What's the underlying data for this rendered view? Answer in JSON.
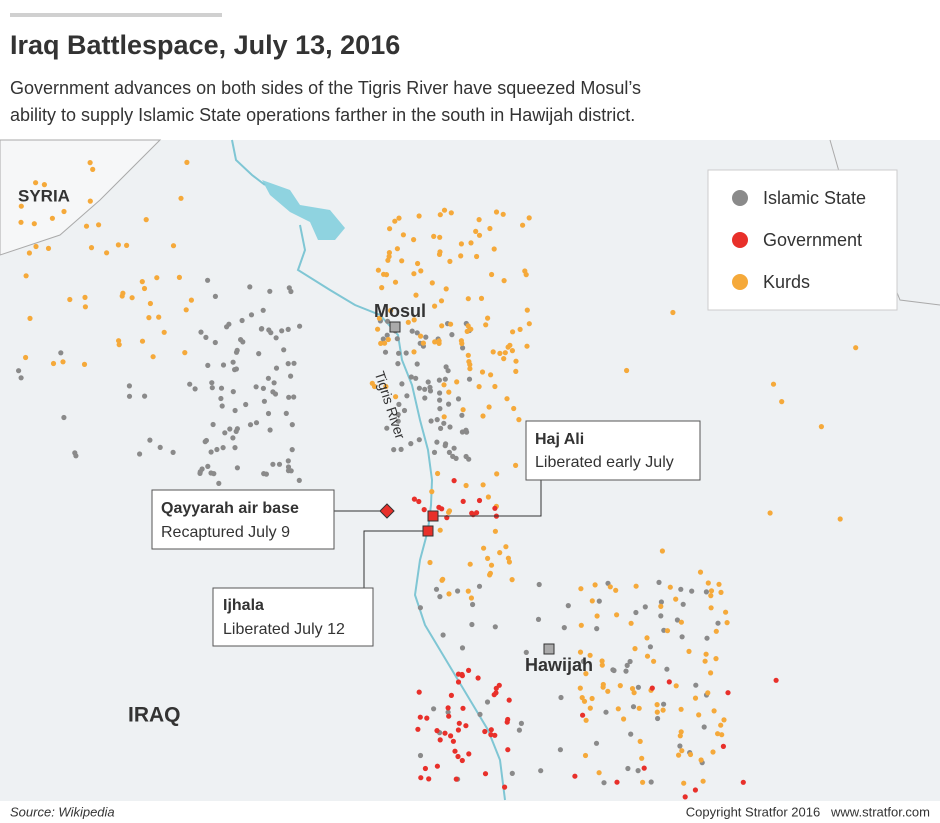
{
  "header": {
    "title": "Iraq Battlespace, July 13, 2016",
    "subtitle": [
      "Government advances on both sides of the Tigris River have squeezed Mosul’s",
      "ability to supply Islamic State operations farther in the south in Hawijah district."
    ]
  },
  "map": {
    "labels": {
      "syria": "SYRIA",
      "iraq": "IRAQ",
      "mosul": "Mosul",
      "hawijah": "Hawijah",
      "river": "Tigris River"
    },
    "legend": [
      {
        "label": "Islamic State",
        "color": "#8a8a8a"
      },
      {
        "label": "Government",
        "color": "#e8302a"
      },
      {
        "label": "Kurds",
        "color": "#f5a93a"
      }
    ],
    "callouts": [
      {
        "title": "Haj Ali",
        "text": "Liberated early July"
      },
      {
        "title": "Qayyarah air base",
        "text": "Recaptured July 9"
      },
      {
        "title": "Ijhala",
        "text": "Liberated July 12"
      }
    ]
  },
  "footer": {
    "source": "Source: Wikipedia",
    "copyright": "Copyright Stratfor 2016   www.stratfor.com"
  }
}
